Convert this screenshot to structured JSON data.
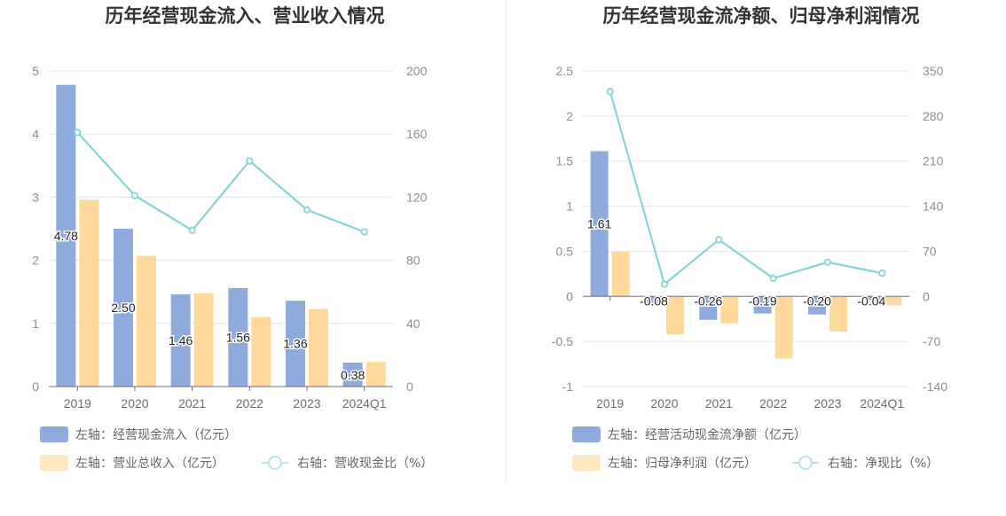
{
  "chart_data": [
    {
      "type": "bar",
      "title": "历年经营现金流入、营业收入情况",
      "categories": [
        "2019",
        "2020",
        "2021",
        "2022",
        "2023",
        "2024Q1"
      ],
      "left_axis": {
        "ylim": [
          0,
          5
        ],
        "ticks": [
          "0",
          "1",
          "2",
          "3",
          "4",
          "5"
        ]
      },
      "right_axis": {
        "ylim": [
          0,
          200
        ],
        "ticks": [
          "0",
          "40",
          "80",
          "120",
          "160",
          "200"
        ]
      },
      "series": [
        {
          "name": "左轴：经营现金流入（亿元）",
          "axis": "left",
          "kind": "bar",
          "color": "#8eabdb",
          "values": [
            4.78,
            2.5,
            1.46,
            1.56,
            1.36,
            0.38
          ],
          "labels": [
            "4.78",
            "2.50",
            "1.46",
            "1.56",
            "1.36",
            "0.38"
          ]
        },
        {
          "name": "左轴：营业总收入（亿元）",
          "axis": "left",
          "kind": "bar",
          "color": "#ffd99b",
          "values": [
            2.96,
            2.07,
            1.48,
            1.1,
            1.23,
            0.39
          ]
        },
        {
          "name": "右轴：营收现金比（%）",
          "axis": "right",
          "kind": "line",
          "color": "#85d4d8",
          "values": [
            161,
            121,
            99,
            143,
            112,
            98
          ]
        }
      ],
      "legend_placement": "bottom",
      "grid": true
    },
    {
      "type": "bar",
      "title": "历年经营现金流净额、归母净利润情况",
      "categories": [
        "2019",
        "2020",
        "2021",
        "2022",
        "2023",
        "2024Q1"
      ],
      "left_axis": {
        "ylim": [
          -1,
          2.5
        ],
        "ticks": [
          "-1",
          "-0.5",
          "0",
          "0.5",
          "1",
          "1.5",
          "2",
          "2.5"
        ]
      },
      "right_axis": {
        "ylim": [
          -140,
          350
        ],
        "ticks": [
          "-140",
          "-70",
          "0",
          "70",
          "140",
          "210",
          "280",
          "350"
        ]
      },
      "series": [
        {
          "name": "左轴：经营活动现金流净额（亿元）",
          "axis": "left",
          "kind": "bar",
          "color": "#8eabdb",
          "values": [
            1.61,
            -0.08,
            -0.26,
            -0.19,
            -0.2,
            -0.04
          ],
          "labels": [
            "1.61",
            "-0.08",
            "-0.26",
            "-0.19",
            "-0.20",
            "-0.04"
          ]
        },
        {
          "name": "左轴：归母净利润（亿元）",
          "axis": "left",
          "kind": "bar",
          "color": "#ffd99b",
          "values": [
            0.5,
            -0.42,
            -0.3,
            -0.69,
            -0.39,
            -0.1
          ]
        },
        {
          "name": "右轴：净现比（%）",
          "axis": "right",
          "kind": "line",
          "color": "#85d4d8",
          "values": [
            318,
            19,
            88,
            28,
            53,
            36
          ]
        }
      ],
      "legend_placement": "bottom",
      "grid": true
    }
  ]
}
